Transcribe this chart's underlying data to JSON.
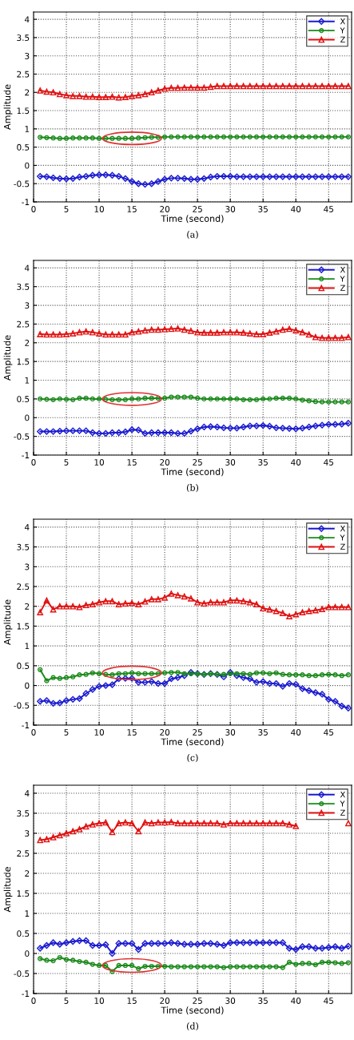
{
  "chart_data": [
    {
      "type": "line",
      "xlabel": "Time (second)",
      "ylabel": "Amplitude",
      "annotations": [
        "(a)"
      ],
      "xlim": [
        0,
        48.5
      ],
      "ylim": [
        -1,
        4.2
      ],
      "xticks": [
        0,
        5,
        10,
        15,
        20,
        25,
        30,
        35,
        40,
        45
      ],
      "yticks": [
        -1,
        -0.5,
        0,
        0.5,
        1,
        1.5,
        2,
        2.5,
        3,
        3.5,
        4
      ],
      "grid": true,
      "legend": "top right",
      "line_style": "solid",
      "x": [
        1,
        2,
        3,
        4,
        5,
        6,
        7,
        8,
        9,
        10,
        11,
        12,
        13,
        14,
        15,
        16,
        17,
        18,
        19,
        20,
        21,
        22,
        23,
        24,
        25,
        26,
        27,
        28,
        29,
        30,
        31,
        32,
        33,
        34,
        35,
        36,
        37,
        38,
        39,
        40,
        41,
        42,
        43,
        44,
        45,
        46,
        47,
        48
      ],
      "series": [
        {
          "name": "X",
          "color": "#1a1ad0",
          "marker": "diamond",
          "values": [
            -0.3,
            -0.31,
            -0.34,
            -0.36,
            -0.37,
            -0.36,
            -0.32,
            -0.3,
            -0.27,
            -0.26,
            -0.26,
            -0.27,
            -0.3,
            -0.36,
            -0.44,
            -0.5,
            -0.52,
            -0.5,
            -0.44,
            -0.38,
            -0.35,
            -0.35,
            -0.36,
            -0.38,
            -0.38,
            -0.36,
            -0.32,
            -0.3,
            -0.3,
            -0.3,
            -0.31,
            -0.31,
            -0.31,
            -0.31,
            -0.31,
            -0.31,
            -0.31,
            -0.31,
            -0.31,
            -0.31,
            -0.31,
            -0.31,
            -0.31,
            -0.31,
            -0.31,
            -0.31,
            -0.31,
            -0.31
          ]
        },
        {
          "name": "Y",
          "color": "#1a8a1a",
          "marker": "circle",
          "values": [
            0.77,
            0.76,
            0.75,
            0.74,
            0.74,
            0.75,
            0.75,
            0.75,
            0.75,
            0.74,
            0.74,
            0.74,
            0.74,
            0.74,
            0.74,
            0.75,
            0.76,
            0.77,
            0.77,
            0.78,
            0.78,
            0.78,
            0.78,
            0.78,
            0.78,
            0.78,
            0.78,
            0.78,
            0.78,
            0.78,
            0.78,
            0.78,
            0.78,
            0.78,
            0.78,
            0.78,
            0.78,
            0.78,
            0.78,
            0.78,
            0.78,
            0.78,
            0.78,
            0.78,
            0.78,
            0.78,
            0.78,
            0.78
          ]
        },
        {
          "name": "Z",
          "color": "#e01010",
          "marker": "triangle",
          "values": [
            2.05,
            2.02,
            2.0,
            1.95,
            1.92,
            1.9,
            1.9,
            1.88,
            1.88,
            1.87,
            1.87,
            1.88,
            1.86,
            1.87,
            1.9,
            1.92,
            1.95,
            2.0,
            2.05,
            2.1,
            2.12,
            2.12,
            2.13,
            2.13,
            2.13,
            2.13,
            2.15,
            2.17,
            2.17,
            2.17,
            2.17,
            2.17,
            2.17,
            2.17,
            2.17,
            2.17,
            2.17,
            2.17,
            2.17,
            2.17,
            2.17,
            2.17,
            2.17,
            2.17,
            2.17,
            2.17,
            2.17,
            2.17
          ]
        }
      ]
    },
    {
      "type": "line",
      "xlabel": "Time (second)",
      "ylabel": "Amplitude",
      "annotations": [
        "(b)"
      ],
      "xlim": [
        0,
        48.5
      ],
      "ylim": [
        -1,
        4.2
      ],
      "xticks": [
        0,
        5,
        10,
        15,
        20,
        25,
        30,
        35,
        40,
        45
      ],
      "yticks": [
        -1,
        -0.5,
        0,
        0.5,
        1,
        1.5,
        2,
        2.5,
        3,
        3.5,
        4
      ],
      "grid": true,
      "legend": "top right",
      "line_style": "solid",
      "x": [
        1,
        2,
        3,
        4,
        5,
        6,
        7,
        8,
        9,
        10,
        11,
        12,
        13,
        14,
        15,
        16,
        17,
        18,
        19,
        20,
        21,
        22,
        23,
        24,
        25,
        26,
        27,
        28,
        29,
        30,
        31,
        32,
        33,
        34,
        35,
        36,
        37,
        38,
        39,
        40,
        41,
        42,
        43,
        44,
        45,
        46,
        47,
        48
      ],
      "series": [
        {
          "name": "X",
          "color": "#1a1ad0",
          "marker": "diamond",
          "values": [
            -0.37,
            -0.37,
            -0.37,
            -0.36,
            -0.35,
            -0.35,
            -0.35,
            -0.35,
            -0.4,
            -0.42,
            -0.42,
            -0.4,
            -0.4,
            -0.38,
            -0.32,
            -0.33,
            -0.42,
            -0.4,
            -0.4,
            -0.4,
            -0.4,
            -0.42,
            -0.42,
            -0.36,
            -0.3,
            -0.25,
            -0.24,
            -0.25,
            -0.27,
            -0.28,
            -0.28,
            -0.25,
            -0.22,
            -0.22,
            -0.21,
            -0.23,
            -0.27,
            -0.28,
            -0.29,
            -0.3,
            -0.28,
            -0.25,
            -0.22,
            -0.2,
            -0.18,
            -0.18,
            -0.17,
            -0.15
          ]
        },
        {
          "name": "Y",
          "color": "#1a8a1a",
          "marker": "circle",
          "values": [
            0.5,
            0.49,
            0.48,
            0.5,
            0.49,
            0.48,
            0.52,
            0.52,
            0.5,
            0.5,
            0.49,
            0.48,
            0.48,
            0.48,
            0.5,
            0.5,
            0.52,
            0.52,
            0.52,
            0.52,
            0.55,
            0.55,
            0.55,
            0.55,
            0.52,
            0.5,
            0.5,
            0.5,
            0.5,
            0.5,
            0.5,
            0.48,
            0.48,
            0.48,
            0.5,
            0.5,
            0.52,
            0.52,
            0.52,
            0.5,
            0.47,
            0.45,
            0.43,
            0.42,
            0.42,
            0.42,
            0.42,
            0.42
          ]
        },
        {
          "name": "Z",
          "color": "#e01010",
          "marker": "triangle",
          "values": [
            2.23,
            2.22,
            2.22,
            2.22,
            2.23,
            2.25,
            2.28,
            2.3,
            2.28,
            2.25,
            2.22,
            2.22,
            2.22,
            2.22,
            2.28,
            2.3,
            2.33,
            2.35,
            2.35,
            2.36,
            2.37,
            2.38,
            2.35,
            2.32,
            2.28,
            2.27,
            2.27,
            2.27,
            2.28,
            2.28,
            2.28,
            2.27,
            2.25,
            2.23,
            2.23,
            2.27,
            2.3,
            2.35,
            2.37,
            2.33,
            2.28,
            2.22,
            2.15,
            2.13,
            2.13,
            2.13,
            2.13,
            2.15
          ]
        }
      ]
    },
    {
      "type": "line",
      "xlabel": "Time (second)",
      "ylabel": "Amplitude",
      "annotations": [
        "(c)"
      ],
      "xlim": [
        0,
        48.5
      ],
      "ylim": [
        -1,
        4.2
      ],
      "xticks": [
        0,
        5,
        10,
        15,
        20,
        25,
        30,
        35,
        40,
        45
      ],
      "yticks": [
        -1,
        -0.5,
        0,
        0.5,
        1,
        1.5,
        2,
        2.5,
        3,
        3.5,
        4
      ],
      "grid": true,
      "legend": "top right",
      "line_style": "solid",
      "x": [
        1,
        2,
        3,
        4,
        5,
        6,
        7,
        8,
        9,
        10,
        11,
        12,
        13,
        14,
        15,
        16,
        17,
        18,
        19,
        20,
        21,
        22,
        23,
        24,
        25,
        26,
        27,
        28,
        29,
        30,
        31,
        32,
        33,
        34,
        35,
        36,
        37,
        38,
        39,
        40,
        41,
        42,
        43,
        44,
        45,
        46,
        47,
        48
      ],
      "series": [
        {
          "name": "X",
          "color": "#1a1ad0",
          "marker": "diamond",
          "values": [
            -0.4,
            -0.38,
            -0.45,
            -0.44,
            -0.38,
            -0.35,
            -0.33,
            -0.2,
            -0.1,
            -0.02,
            0.0,
            0.02,
            0.17,
            0.18,
            0.18,
            0.08,
            0.08,
            0.1,
            0.05,
            0.05,
            0.17,
            0.2,
            0.25,
            0.33,
            0.3,
            0.28,
            0.3,
            0.28,
            0.22,
            0.33,
            0.25,
            0.2,
            0.17,
            0.08,
            0.1,
            0.05,
            0.05,
            -0.02,
            0.05,
            0.03,
            -0.08,
            -0.13,
            -0.18,
            -0.22,
            -0.35,
            -0.4,
            -0.52,
            -0.57
          ]
        },
        {
          "name": "Y",
          "color": "#1a8a1a",
          "marker": "circle",
          "values": [
            0.4,
            0.12,
            0.2,
            0.18,
            0.2,
            0.22,
            0.27,
            0.28,
            0.32,
            0.3,
            0.28,
            0.27,
            0.3,
            0.3,
            0.32,
            0.3,
            0.3,
            0.3,
            0.3,
            0.32,
            0.33,
            0.33,
            0.3,
            0.3,
            0.3,
            0.28,
            0.3,
            0.28,
            0.28,
            0.3,
            0.3,
            0.3,
            0.28,
            0.32,
            0.32,
            0.3,
            0.32,
            0.28,
            0.27,
            0.27,
            0.27,
            0.25,
            0.25,
            0.27,
            0.28,
            0.27,
            0.25,
            0.27
          ]
        },
        {
          "name": "Z",
          "color": "#e01010",
          "marker": "triangle",
          "values": [
            1.85,
            2.15,
            1.92,
            2.0,
            2.0,
            2.0,
            1.98,
            2.03,
            2.05,
            2.1,
            2.13,
            2.13,
            2.05,
            2.07,
            2.08,
            2.05,
            2.12,
            2.18,
            2.18,
            2.22,
            2.32,
            2.28,
            2.25,
            2.2,
            2.1,
            2.07,
            2.1,
            2.1,
            2.1,
            2.15,
            2.15,
            2.13,
            2.1,
            2.05,
            1.95,
            1.92,
            1.88,
            1.83,
            1.75,
            1.8,
            1.85,
            1.88,
            1.9,
            1.93,
            1.98,
            1.98,
            1.98,
            1.98
          ]
        }
      ]
    },
    {
      "type": "line",
      "xlabel": "Time (second)",
      "ylabel": "Amplitude",
      "annotations": [
        "(d)"
      ],
      "xlim": [
        0,
        48.5
      ],
      "ylim": [
        -1,
        4.2
      ],
      "xticks": [
        0,
        5,
        10,
        15,
        20,
        25,
        30,
        35,
        40,
        45
      ],
      "yticks": [
        -1,
        -0.5,
        0,
        0.5,
        1,
        1.5,
        2,
        2.5,
        3,
        3.5,
        4
      ],
      "grid": true,
      "legend": "top right",
      "line_style": "solid",
      "x": [
        1,
        2,
        3,
        4,
        5,
        6,
        7,
        8,
        9,
        10,
        11,
        12,
        13,
        14,
        15,
        16,
        17,
        18,
        19,
        20,
        21,
        22,
        23,
        24,
        25,
        26,
        27,
        28,
        29,
        30,
        31,
        32,
        33,
        34,
        35,
        36,
        37,
        38,
        39,
        40,
        41,
        42,
        43,
        44,
        45,
        46,
        47,
        48
      ],
      "series": [
        {
          "name": "X",
          "color": "#1a1ad0",
          "marker": "diamond",
          "values": [
            0.13,
            0.2,
            0.27,
            0.23,
            0.27,
            0.3,
            0.32,
            0.32,
            0.2,
            0.2,
            0.22,
            0.0,
            0.25,
            0.25,
            0.25,
            0.1,
            0.25,
            0.25,
            0.25,
            0.25,
            0.27,
            0.25,
            0.23,
            0.23,
            0.23,
            0.25,
            0.25,
            0.23,
            0.2,
            0.27,
            0.27,
            0.27,
            0.27,
            0.27,
            0.27,
            0.27,
            0.27,
            0.27,
            0.13,
            0.1,
            0.17,
            0.17,
            0.13,
            0.13,
            0.15,
            0.17,
            0.13,
            0.18
          ]
        },
        {
          "name": "Y",
          "color": "#1a8a1a",
          "marker": "circle",
          "values": [
            -0.13,
            -0.17,
            -0.18,
            -0.1,
            -0.15,
            -0.17,
            -0.2,
            -0.22,
            -0.27,
            -0.3,
            -0.3,
            -0.45,
            -0.3,
            -0.3,
            -0.3,
            -0.38,
            -0.32,
            -0.32,
            -0.32,
            -0.32,
            -0.33,
            -0.33,
            -0.33,
            -0.33,
            -0.33,
            -0.33,
            -0.33,
            -0.33,
            -0.35,
            -0.33,
            -0.33,
            -0.33,
            -0.33,
            -0.33,
            -0.33,
            -0.33,
            -0.33,
            -0.35,
            -0.22,
            -0.27,
            -0.25,
            -0.25,
            -0.28,
            -0.22,
            -0.22,
            -0.23,
            -0.25,
            -0.23
          ]
        },
        {
          "name": "Z",
          "color": "#e01010",
          "marker": "triangle",
          "values": [
            2.83,
            2.85,
            2.9,
            2.95,
            3.0,
            3.05,
            3.1,
            3.17,
            3.22,
            3.25,
            3.27,
            3.03,
            3.25,
            3.27,
            3.25,
            3.05,
            3.27,
            3.25,
            3.27,
            3.27,
            3.28,
            3.25,
            3.25,
            3.25,
            3.25,
            3.25,
            3.25,
            3.25,
            3.22,
            3.25,
            3.25,
            3.25,
            3.25,
            3.25,
            3.25,
            3.25,
            3.25,
            3.25,
            3.22,
            3.18,
            null,
            null,
            null,
            null,
            null,
            null,
            null,
            3.25
          ]
        }
      ]
    }
  ]
}
